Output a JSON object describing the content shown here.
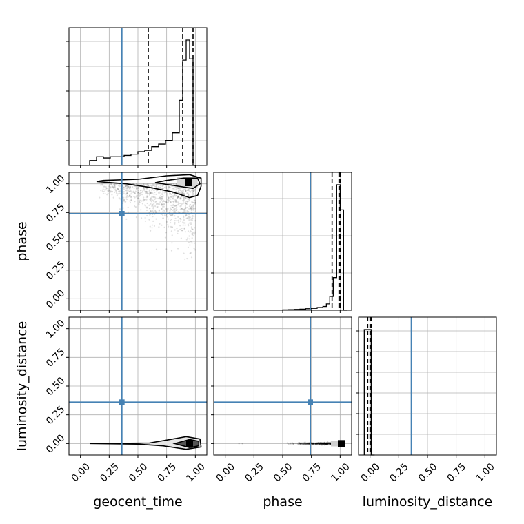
{
  "chart_data": {
    "type": "corner",
    "parameters": [
      "geocent_time",
      "phase",
      "luminosity_distance"
    ],
    "axis_labels": {
      "bottom": [
        "geocent_time",
        "phase",
        "luminosity_distance"
      ],
      "left": [
        "",
        "phase",
        "luminosity_distance"
      ]
    },
    "tick_labels": [
      "0.00",
      "0.25",
      "0.50",
      "0.75",
      "1.00"
    ],
    "range": [
      -0.1,
      1.1
    ],
    "grid": true,
    "truth": {
      "geocent_time": 0.36,
      "phase": 0.74,
      "luminosity_distance": 0.36,
      "color": "#4682b4"
    },
    "marginals": [
      {
        "parameter": "geocent_time",
        "bin_edges": [
          0.08,
          0.14,
          0.2,
          0.26,
          0.32,
          0.38,
          0.44,
          0.5,
          0.56,
          0.62,
          0.68,
          0.74,
          0.8,
          0.86,
          0.89,
          0.92,
          0.95,
          0.98,
          1.01
        ],
        "counts": [
          4,
          7,
          6,
          7,
          7,
          8,
          9,
          11,
          12,
          15,
          17,
          20,
          26,
          52,
          84,
          100,
          85,
          0
        ],
        "quantiles": [
          0.59,
          0.89,
          0.98
        ]
      },
      {
        "parameter": "phase",
        "bin_edges": [
          0.5,
          0.55,
          0.6,
          0.65,
          0.7,
          0.75,
          0.8,
          0.85,
          0.88,
          0.91,
          0.94,
          0.97,
          1.0,
          1.03,
          1.06
        ],
        "counts": [
          0.3,
          0.5,
          0.7,
          0.9,
          1.2,
          1.5,
          2.2,
          3,
          5,
          11,
          26,
          100,
          80,
          0
        ],
        "quantiles": [
          0.93,
          0.99,
          1.0
        ]
      },
      {
        "parameter": "luminosity_distance",
        "bin_edges": [
          -0.05,
          -0.02,
          0.01,
          0.04
        ],
        "counts": [
          100,
          100,
          0
        ],
        "quantiles": [
          -0.02,
          0.0,
          0.01
        ]
      }
    ],
    "hist_yticks": [
      [
        0.18,
        0.36,
        0.54,
        0.72,
        0.9
      ],
      [
        0.27,
        0.54,
        0.81
      ],
      [
        0.15,
        0.3,
        0.45,
        0.6,
        0.75,
        0.9
      ]
    ],
    "scatter": {
      "phase_vs_geocent_time": {
        "description_count": 900,
        "contours": [
          {
            "level": "outer",
            "points": [
              [
                0.14,
                1.02
              ],
              [
                0.4,
                1.0
              ],
              [
                0.6,
                0.97
              ],
              [
                0.8,
                0.93
              ],
              [
                0.95,
                0.88
              ],
              [
                1.02,
                0.9
              ],
              [
                1.05,
                0.98
              ],
              [
                1.05,
                1.05
              ],
              [
                0.95,
                1.08
              ],
              [
                0.75,
                1.07
              ],
              [
                0.5,
                1.04
              ],
              [
                0.2,
                1.03
              ]
            ]
          },
          {
            "level": "inner",
            "points": [
              [
                0.65,
                1.01
              ],
              [
                0.85,
                0.98
              ],
              [
                0.98,
                0.96
              ],
              [
                1.04,
                1.0
              ],
              [
                1.02,
                1.05
              ],
              [
                0.9,
                1.05
              ],
              [
                0.75,
                1.03
              ]
            ]
          }
        ],
        "mode": [
          0.94,
          1.01
        ]
      },
      "luminosity_distance_vs_geocent_time": {
        "contours": [
          {
            "level": "outer",
            "points": [
              [
                0.08,
                0.0
              ],
              [
                0.6,
                0.005
              ],
              [
                0.75,
                0.03
              ],
              [
                0.92,
                0.06
              ],
              [
                1.04,
                0.04
              ],
              [
                1.05,
                -0.03
              ],
              [
                0.92,
                -0.05
              ],
              [
                0.72,
                -0.02
              ],
              [
                0.5,
                -0.005
              ],
              [
                0.08,
                0.0
              ]
            ]
          },
          {
            "level": "inner",
            "points": [
              [
                0.82,
                0.0
              ],
              [
                0.95,
                0.035
              ],
              [
                1.03,
                0.02
              ],
              [
                1.03,
                -0.02
              ],
              [
                0.95,
                -0.035
              ]
            ]
          }
        ],
        "mode": [
          0.95,
          0.0
        ]
      },
      "luminosity_distance_vs_phase": {
        "mode": [
          1.01,
          0.0
        ]
      }
    }
  }
}
